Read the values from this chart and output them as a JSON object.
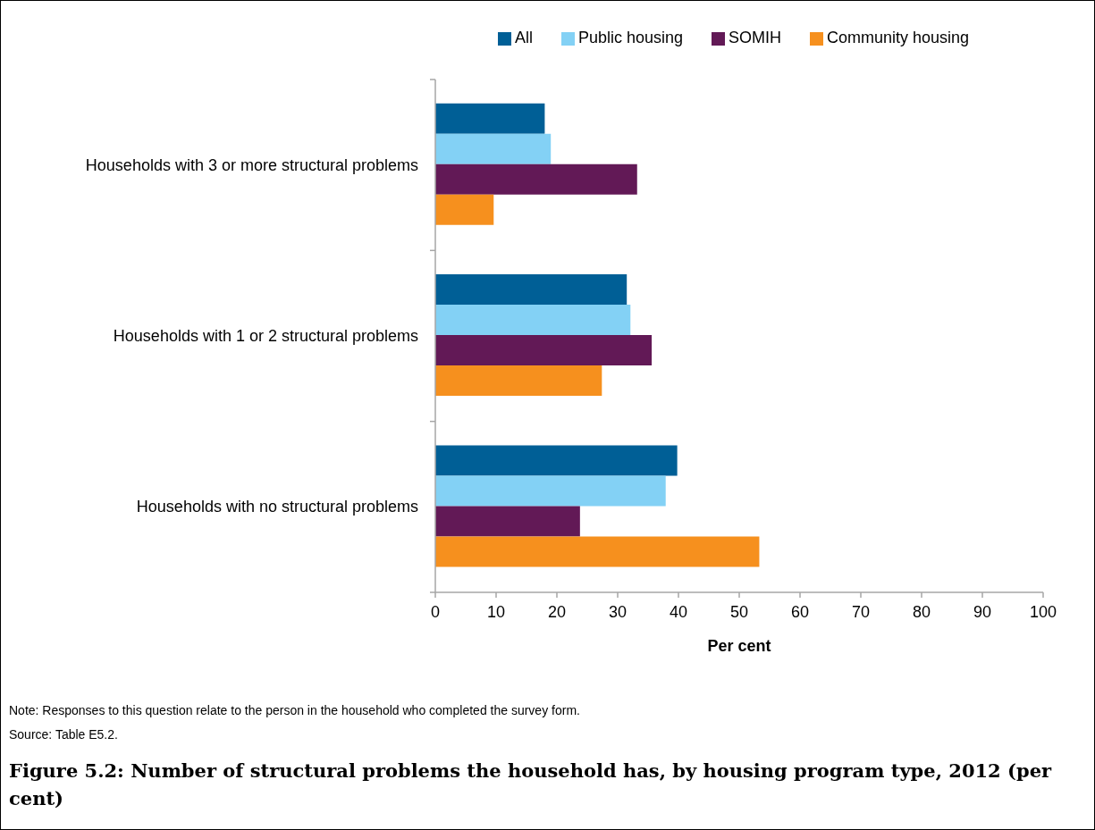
{
  "chart_data": {
    "type": "bar",
    "orientation": "horizontal",
    "title": "Figure 5.2: Number of structural problems the household has, by housing program type, 2012 (per cent)",
    "xlabel": "Per cent",
    "categories": [
      "Households with 3 or more structural problems",
      "Households with 1 or 2 structural problems",
      "Households with no structural problems"
    ],
    "series": [
      {
        "name": "All",
        "color": "#005f96",
        "values": [
          18.0,
          31.5,
          39.8
        ]
      },
      {
        "name": "Public housing",
        "color": "#83d1f5",
        "values": [
          19.0,
          32.1,
          37.9
        ]
      },
      {
        "name": "SOMIH",
        "color": "#621956",
        "values": [
          33.2,
          35.6,
          23.8
        ]
      },
      {
        "name": "Community housing",
        "color": "#f6901e",
        "values": [
          9.6,
          27.4,
          53.3
        ]
      }
    ],
    "xlim": [
      0,
      100
    ],
    "xticks": [
      0,
      10,
      20,
      30,
      40,
      50,
      60,
      70,
      80,
      90,
      100
    ],
    "legend": "top",
    "annotations": [
      "Note: Responses to this question relate to the person in the household who completed the survey form.",
      "Source: Table E5.2."
    ]
  }
}
